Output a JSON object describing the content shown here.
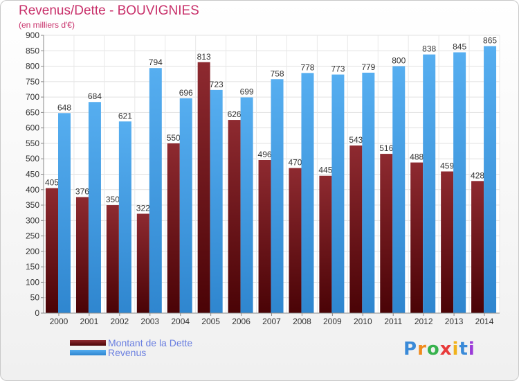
{
  "header": {
    "title": "Revenus/Dette - BOUVIGNIES",
    "subtitle": "(en milliers d'€)"
  },
  "legend": {
    "items": [
      {
        "label": "Montant de la Dette",
        "color": "#7a1418"
      },
      {
        "label": "Revenus",
        "color": "#3f9fe4"
      }
    ]
  },
  "brand": {
    "logo_text": "Proxiti"
  },
  "chart_data": {
    "type": "bar",
    "title": "Revenus/Dette - BOUVIGNIES",
    "subtitle": "(en milliers d'€)",
    "categories": [
      "2000",
      "2001",
      "2002",
      "2003",
      "2004",
      "2005",
      "2006",
      "2007",
      "2008",
      "2009",
      "2010",
      "2011",
      "2012",
      "2013",
      "2014"
    ],
    "series": [
      {
        "name": "Montant de la Dette",
        "color": "#7a1418",
        "values": [
          405,
          376,
          350,
          322,
          550,
          813,
          626,
          496,
          470,
          445,
          543,
          516,
          488,
          459,
          428
        ]
      },
      {
        "name": "Revenus",
        "color": "#3f9fe4",
        "values": [
          648,
          684,
          621,
          794,
          696,
          723,
          699,
          758,
          778,
          773,
          779,
          800,
          838,
          845,
          865
        ]
      }
    ],
    "ylim": [
      0,
      900
    ],
    "ytick_step": 50,
    "grid": true,
    "legend_position": "bottom-left"
  }
}
